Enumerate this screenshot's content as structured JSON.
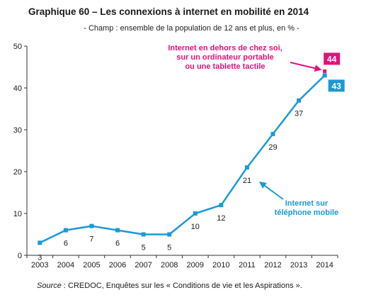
{
  "chart_data": {
    "type": "line",
    "title": "Graphique 60 – Les connexions à internet en mobilité en 2014",
    "subtitle": "- Champ : ensemble de la population de 12 ans et plus, en % -",
    "xlabel": "",
    "ylabel": "",
    "categories": [
      "2003",
      "2004",
      "2005",
      "2006",
      "2007",
      "2008",
      "2009",
      "2010",
      "2011",
      "2012",
      "2013",
      "2014"
    ],
    "ylim": [
      0,
      50
    ],
    "yticks": [
      0,
      10,
      20,
      30,
      40,
      50
    ],
    "grid": false,
    "series": [
      {
        "name": "Internet sur téléphone mobile",
        "color": "#1a9ad6",
        "values": [
          3,
          6,
          7,
          6,
          5,
          5,
          10,
          12,
          21,
          29,
          37,
          43
        ],
        "labels": [
          "3",
          "6",
          "7",
          "6",
          "5",
          "5",
          "10",
          "12",
          "21",
          "29",
          "37",
          "43"
        ],
        "annotation_lines": [
          "Internet sur",
          "téléphone mobile"
        ]
      },
      {
        "name": "Internet en dehors de chez soi, sur un ordinateur portable ou une tablette tactile",
        "color": "#e0127a",
        "points": [
          {
            "x": "2014",
            "y": 44
          }
        ],
        "labels": [
          "44"
        ],
        "annotation_lines": [
          "Internet en dehors de chez soi,",
          "sur un ordinateur portable",
          "ou une tablette tactile"
        ]
      }
    ]
  },
  "source": {
    "label": "Source",
    "text": " : CREDOC, Enquêtes sur les « Conditions de vie et les Aspirations »."
  }
}
